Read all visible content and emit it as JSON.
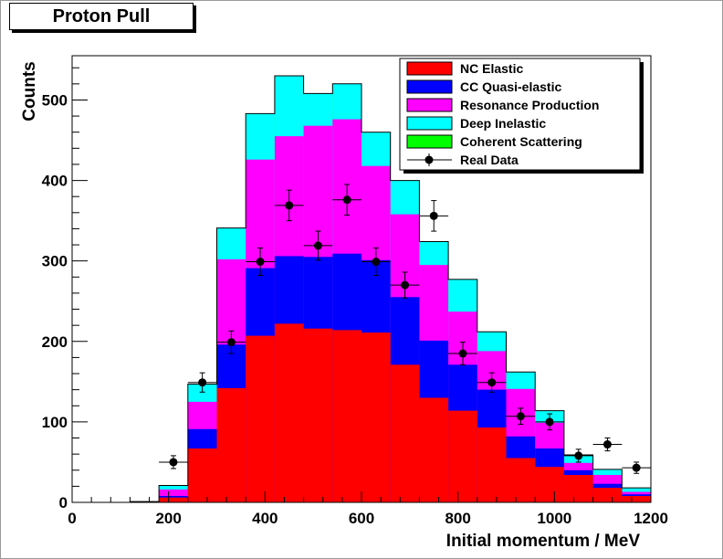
{
  "chart_data": {
    "type": "bar",
    "title": "Proton Pull",
    "xlabel": "Initial momentum / MeV",
    "ylabel": "Counts",
    "xlim": [
      0,
      1200
    ],
    "ylim": [
      0,
      555
    ],
    "x_ticks": [
      "0",
      "200",
      "400",
      "600",
      "800",
      "1000",
      "1200"
    ],
    "y_ticks": [
      "0",
      "100",
      "200",
      "300",
      "400",
      "500"
    ],
    "bin_edges": [
      0,
      60,
      120,
      180,
      240,
      300,
      360,
      420,
      480,
      540,
      600,
      660,
      720,
      780,
      840,
      900,
      960,
      1020,
      1080,
      1140,
      1200
    ],
    "stacked": true,
    "legend_position": "top-right",
    "series": [
      {
        "name": "NC Elastic",
        "color": "#ff0000",
        "values": [
          0,
          0,
          1,
          6,
          67,
          142,
          207,
          222,
          216,
          214,
          211,
          171,
          130,
          114,
          93,
          55,
          44,
          34,
          18,
          8
        ]
      },
      {
        "name": "CC Quasi-elastic",
        "color": "#0000ff",
        "values": [
          0,
          0,
          0,
          2,
          24,
          54,
          84,
          84,
          89,
          95,
          90,
          84,
          71,
          57,
          47,
          27,
          23,
          6,
          5,
          2
        ]
      },
      {
        "name": "Resonance Production",
        "color": "#ff00ff",
        "values": [
          0,
          0,
          0,
          8,
          34,
          106,
          135,
          149,
          163,
          167,
          117,
          103,
          94,
          66,
          48,
          59,
          32,
          9,
          11,
          3
        ]
      },
      {
        "name": "Deep Inelastic",
        "color": "#00ffff",
        "values": [
          0,
          0,
          0,
          5,
          22,
          39,
          57,
          75,
          40,
          44,
          42,
          42,
          29,
          40,
          24,
          21,
          15,
          10,
          7,
          5
        ]
      },
      {
        "name": "Coherent Scattering",
        "color": "#00ff00",
        "values": [
          0,
          0,
          0,
          0,
          0,
          0,
          0,
          0,
          0,
          0,
          0,
          0,
          0,
          0,
          0,
          0,
          0,
          0,
          0,
          0
        ]
      }
    ],
    "real_data": {
      "name": "Real Data",
      "color": "#000000",
      "points": [
        {
          "x": 210,
          "y": 50,
          "err": 8
        },
        {
          "x": 270,
          "y": 149,
          "err": 12
        },
        {
          "x": 330,
          "y": 199,
          "err": 14
        },
        {
          "x": 390,
          "y": 299,
          "err": 17
        },
        {
          "x": 450,
          "y": 369,
          "err": 19
        },
        {
          "x": 510,
          "y": 319,
          "err": 18
        },
        {
          "x": 570,
          "y": 376,
          "err": 19
        },
        {
          "x": 630,
          "y": 299,
          "err": 17
        },
        {
          "x": 690,
          "y": 270,
          "err": 16
        },
        {
          "x": 750,
          "y": 356,
          "err": 19
        },
        {
          "x": 810,
          "y": 185,
          "err": 14
        },
        {
          "x": 870,
          "y": 149,
          "err": 12
        },
        {
          "x": 930,
          "y": 107,
          "err": 10
        },
        {
          "x": 990,
          "y": 100,
          "err": 10
        },
        {
          "x": 1050,
          "y": 58,
          "err": 8
        },
        {
          "x": 1110,
          "y": 72,
          "err": 8
        },
        {
          "x": 1170,
          "y": 43,
          "err": 7
        }
      ]
    }
  }
}
